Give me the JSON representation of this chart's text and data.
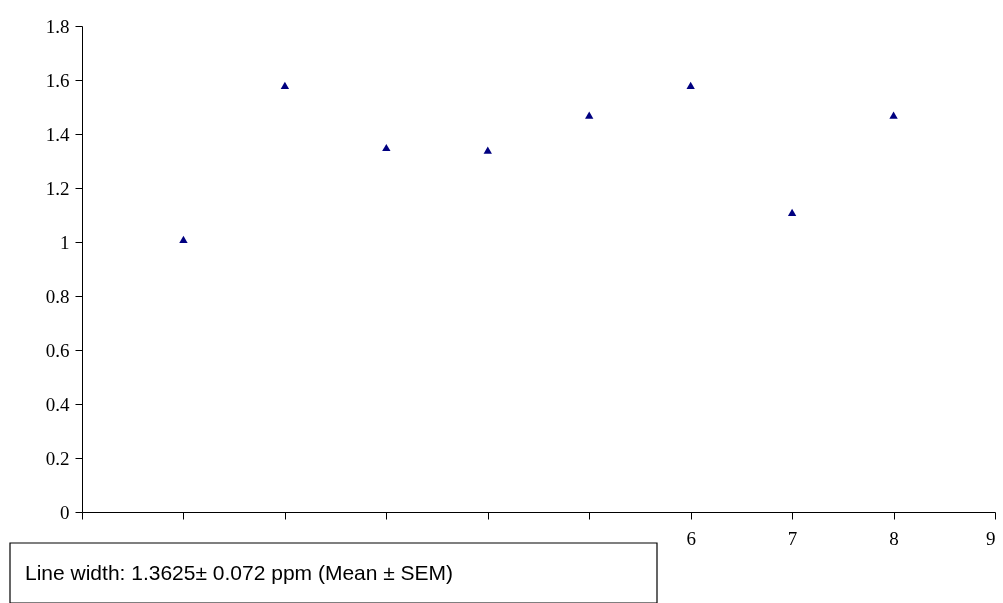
{
  "chart_data": {
    "type": "scatter",
    "x": [
      1,
      2,
      3,
      4,
      5,
      6,
      7,
      8
    ],
    "series": [
      {
        "color": "#000080",
        "values": [
          1.01,
          1.58,
          1.35,
          1.34,
          1.47,
          1.58,
          1.11,
          1.47
        ]
      }
    ],
    "xlim": [
      0,
      9
    ],
    "xticks": [
      {
        "value": 0,
        "label": null
      },
      {
        "value": 1,
        "label": null
      },
      {
        "value": 2,
        "label": null
      },
      {
        "value": 3,
        "label": null
      },
      {
        "value": 4,
        "label": null
      },
      {
        "value": 5,
        "label": null
      },
      6,
      7,
      8,
      9
    ],
    "ylim": [
      0,
      1.8
    ],
    "yticks": [
      0,
      0.2,
      0.4,
      0.6,
      0.8,
      1,
      1.2,
      1.4,
      1.6,
      1.8
    ],
    "marker": "triangle",
    "grid": false,
    "annotations": [
      "Line width: 1.3625± 0.072 ppm (Mean ± SEM)"
    ]
  }
}
